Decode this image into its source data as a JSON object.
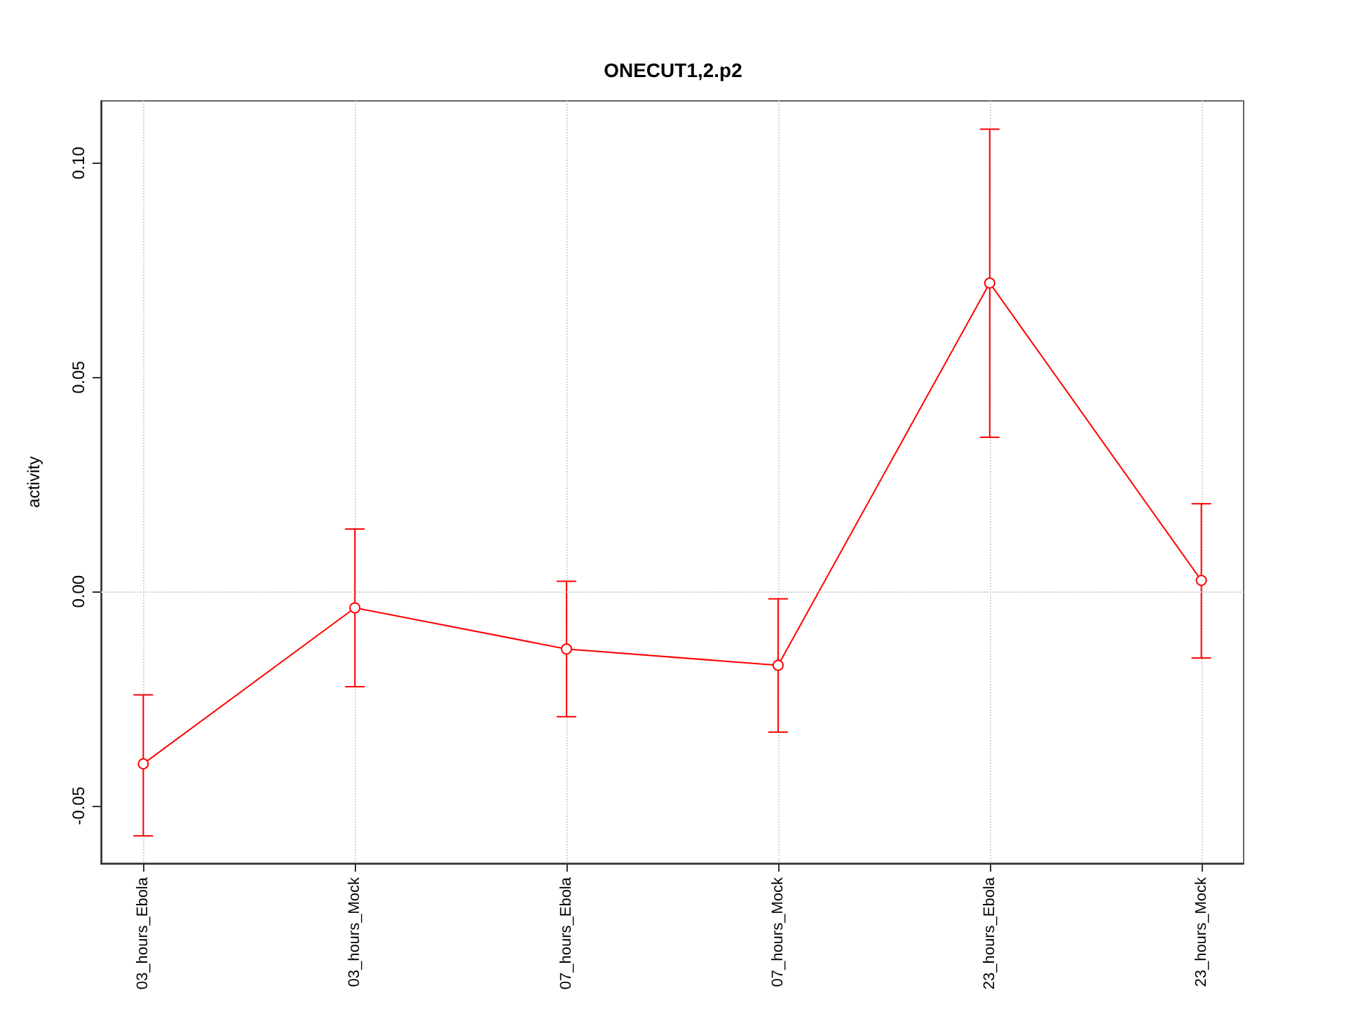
{
  "chart_data": {
    "type": "line",
    "title": "ONECUT1,2.p2",
    "ylabel": "activity",
    "categories": [
      "03_hours_Ebola",
      "03_hours_Mock",
      "07_hours_Ebola",
      "07_hours_Mock",
      "23_hours_Ebola",
      "23_hours_Mock"
    ],
    "series": [
      {
        "color": "#ff0000",
        "values": [
          -0.0402,
          -0.0038,
          -0.0134,
          -0.0172,
          0.072,
          0.0026
        ],
        "errors": [
          [
            -0.057,
            -0.0241
          ],
          [
            -0.0222,
            0.0146
          ],
          [
            -0.0292,
            0.0024
          ],
          [
            -0.0328,
            -0.0017
          ],
          [
            0.036,
            0.1079
          ],
          [
            -0.0155,
            0.0205
          ]
        ]
      }
    ],
    "ylim": [
      -0.0634,
      0.1145
    ],
    "yticks": [
      -0.05,
      {
        "value": 0,
        "label": "0.00"
      },
      0.05,
      {
        "value": 0.1,
        "label": "0.10"
      }
    ],
    "grid": "x",
    "marker": "circle",
    "line_style": "solid",
    "ref_lines": [
      {
        "axis": "y",
        "value": 0,
        "color": "#cccccc",
        "line_style": "dotted"
      }
    ]
  }
}
